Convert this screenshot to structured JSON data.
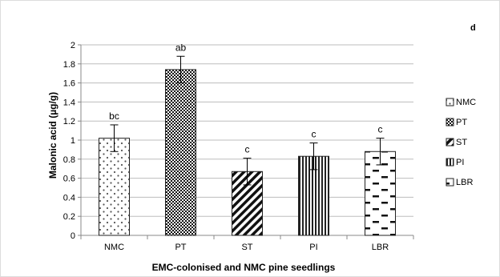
{
  "panel_label": "d",
  "chart_data": {
    "type": "bar",
    "title": "",
    "xlabel": "EMC-colonised and NMC pine seedlings",
    "ylabel": "Malonic acid (µg/g)",
    "ylim": [
      0,
      2
    ],
    "ytick_step": 0.2,
    "yticks": [
      "0",
      "0.2",
      "0.4",
      "0.6",
      "0.8",
      "1",
      "1.2",
      "1.4",
      "1.6",
      "1.8",
      "2"
    ],
    "grid": true,
    "legend_position": "right",
    "categories": [
      "NMC",
      "PT",
      "ST",
      "PI",
      "LBR"
    ],
    "values": [
      1.02,
      1.74,
      0.67,
      0.83,
      0.88
    ],
    "errors": [
      0.14,
      0.14,
      0.14,
      0.14,
      0.14
    ],
    "significance": [
      "bc",
      "ab",
      "c",
      "c",
      "c"
    ],
    "patterns": [
      "dots",
      "checker",
      "diagonal",
      "vertical",
      "dashes"
    ]
  }
}
